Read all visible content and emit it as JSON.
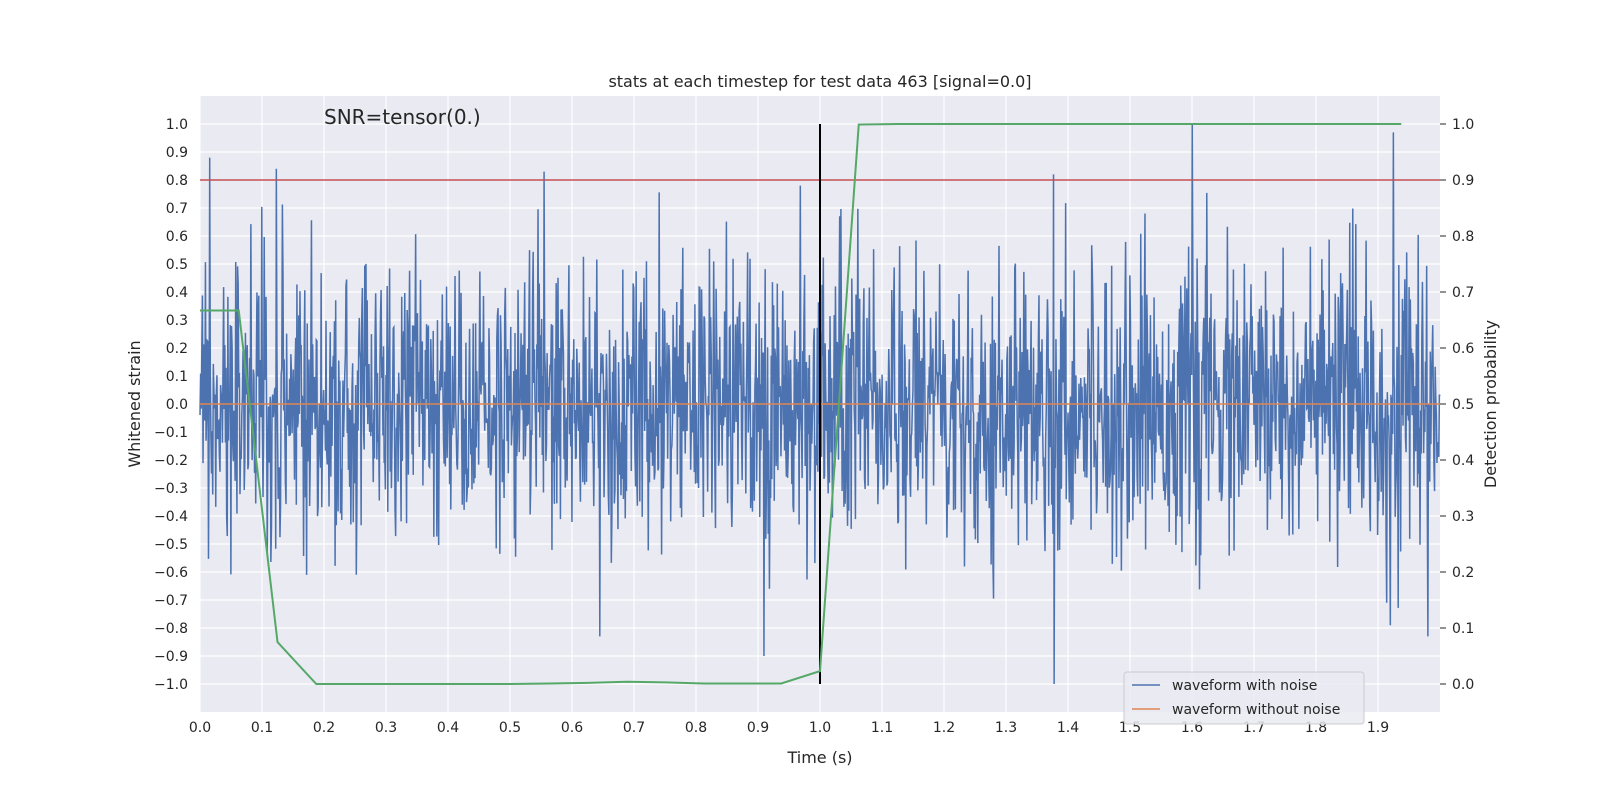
{
  "chart_data": {
    "type": "line",
    "title": "stats at each timestep for test data 463 [signal=0.0]",
    "xlabel": "Time (s)",
    "ylabel": "Whitened strain",
    "y2label": "Detection probability",
    "annotation": "SNR=tensor(0.)",
    "xlim": [
      0.0,
      2.0
    ],
    "ylim": [
      -1.1,
      1.1
    ],
    "y2lim": [
      -0.05,
      1.05
    ],
    "xticks": [
      "0.0",
      "0.1",
      "0.2",
      "0.3",
      "0.4",
      "0.5",
      "0.6",
      "0.7",
      "0.8",
      "0.9",
      "1.0",
      "1.1",
      "1.2",
      "1.3",
      "1.4",
      "1.5",
      "1.6",
      "1.7",
      "1.8",
      "1.9"
    ],
    "yticks": [
      "1.0",
      "0.9",
      "0.8",
      "0.7",
      "0.6",
      "0.5",
      "0.4",
      "0.3",
      "0.2",
      "0.1",
      "0.0",
      "−0.1",
      "−0.2",
      "−0.3",
      "−0.4",
      "−0.5",
      "−0.6",
      "−0.7",
      "−0.8",
      "−0.9",
      "−1.0"
    ],
    "y2ticks": [
      "1.0",
      "0.9",
      "0.8",
      "0.7",
      "0.6",
      "0.5",
      "0.4",
      "0.3",
      "0.2",
      "0.1",
      "0.0"
    ],
    "grid": true,
    "legend_position": "lower-right",
    "series": [
      {
        "name": "waveform with noise",
        "color": "#4c72b0",
        "axis": "left",
        "kind": "noise",
        "samples": 2048,
        "std": 0.25,
        "peaks": [
          [
            0.016,
            0.88
          ],
          [
            0.123,
            0.84
          ],
          [
            0.555,
            0.83
          ],
          [
            1.377,
            0.82
          ],
          [
            1.6,
            1.0
          ],
          [
            1.925,
            0.97
          ],
          [
            0.91,
            -0.9
          ],
          [
            1.378,
            -1.0
          ],
          [
            0.645,
            -0.83
          ],
          [
            1.98,
            -0.83
          ],
          [
            1.92,
            -0.79
          ]
        ]
      },
      {
        "name": "waveform without noise",
        "color": "#dd8452",
        "axis": "left",
        "x": [
          0.0,
          2.0
        ],
        "y": [
          0.0,
          0.0
        ]
      },
      {
        "name": "detection probability",
        "color": "#55a868",
        "axis": "right",
        "x": [
          0.0,
          0.0625,
          0.125,
          0.1875,
          0.25,
          0.3125,
          0.375,
          0.4375,
          0.5,
          0.5625,
          0.625,
          0.6875,
          0.75,
          0.8125,
          0.875,
          0.9375,
          1.0,
          1.0625,
          1.125,
          1.1875,
          1.25,
          1.3125,
          1.375,
          1.4375,
          1.5,
          1.5625,
          1.625,
          1.6875,
          1.75,
          1.8125,
          1.875,
          1.9375
        ],
        "y": [
          0.667,
          0.667,
          0.075,
          0.0,
          0.0,
          0.0,
          0.0,
          0.0,
          0.0,
          0.001,
          0.002,
          0.004,
          0.003,
          0.001,
          0.001,
          0.001,
          0.023,
          0.999,
          1.0,
          1.0,
          1.0,
          1.0,
          1.0,
          1.0,
          1.0,
          1.0,
          1.0,
          1.0,
          1.0,
          1.0,
          1.0,
          1.0
        ]
      }
    ],
    "threshold": {
      "value": 0.9,
      "axis": "right",
      "color": "#c44e52"
    },
    "vline": {
      "x": 1.0,
      "color": "#000000"
    }
  }
}
